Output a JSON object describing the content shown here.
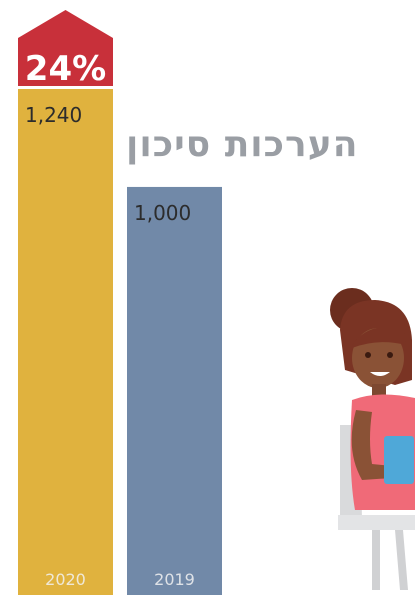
{
  "header": {
    "title": "הערכות סיכון"
  },
  "colors": {
    "bar_2020": "#e0b23e",
    "bar_2019": "#7189a8",
    "badge": "#c8303a",
    "title": "#9a9ea4"
  },
  "chart_data": {
    "type": "bar",
    "title": "הערכות סיכון",
    "categories": [
      "2020",
      "2019"
    ],
    "values": [
      1240,
      1000
    ],
    "value_labels": [
      "1,240",
      "1,000"
    ],
    "change_badge": "24%",
    "xlabel": "",
    "ylabel": "",
    "ylim": [
      0,
      1240
    ],
    "grid": false
  }
}
